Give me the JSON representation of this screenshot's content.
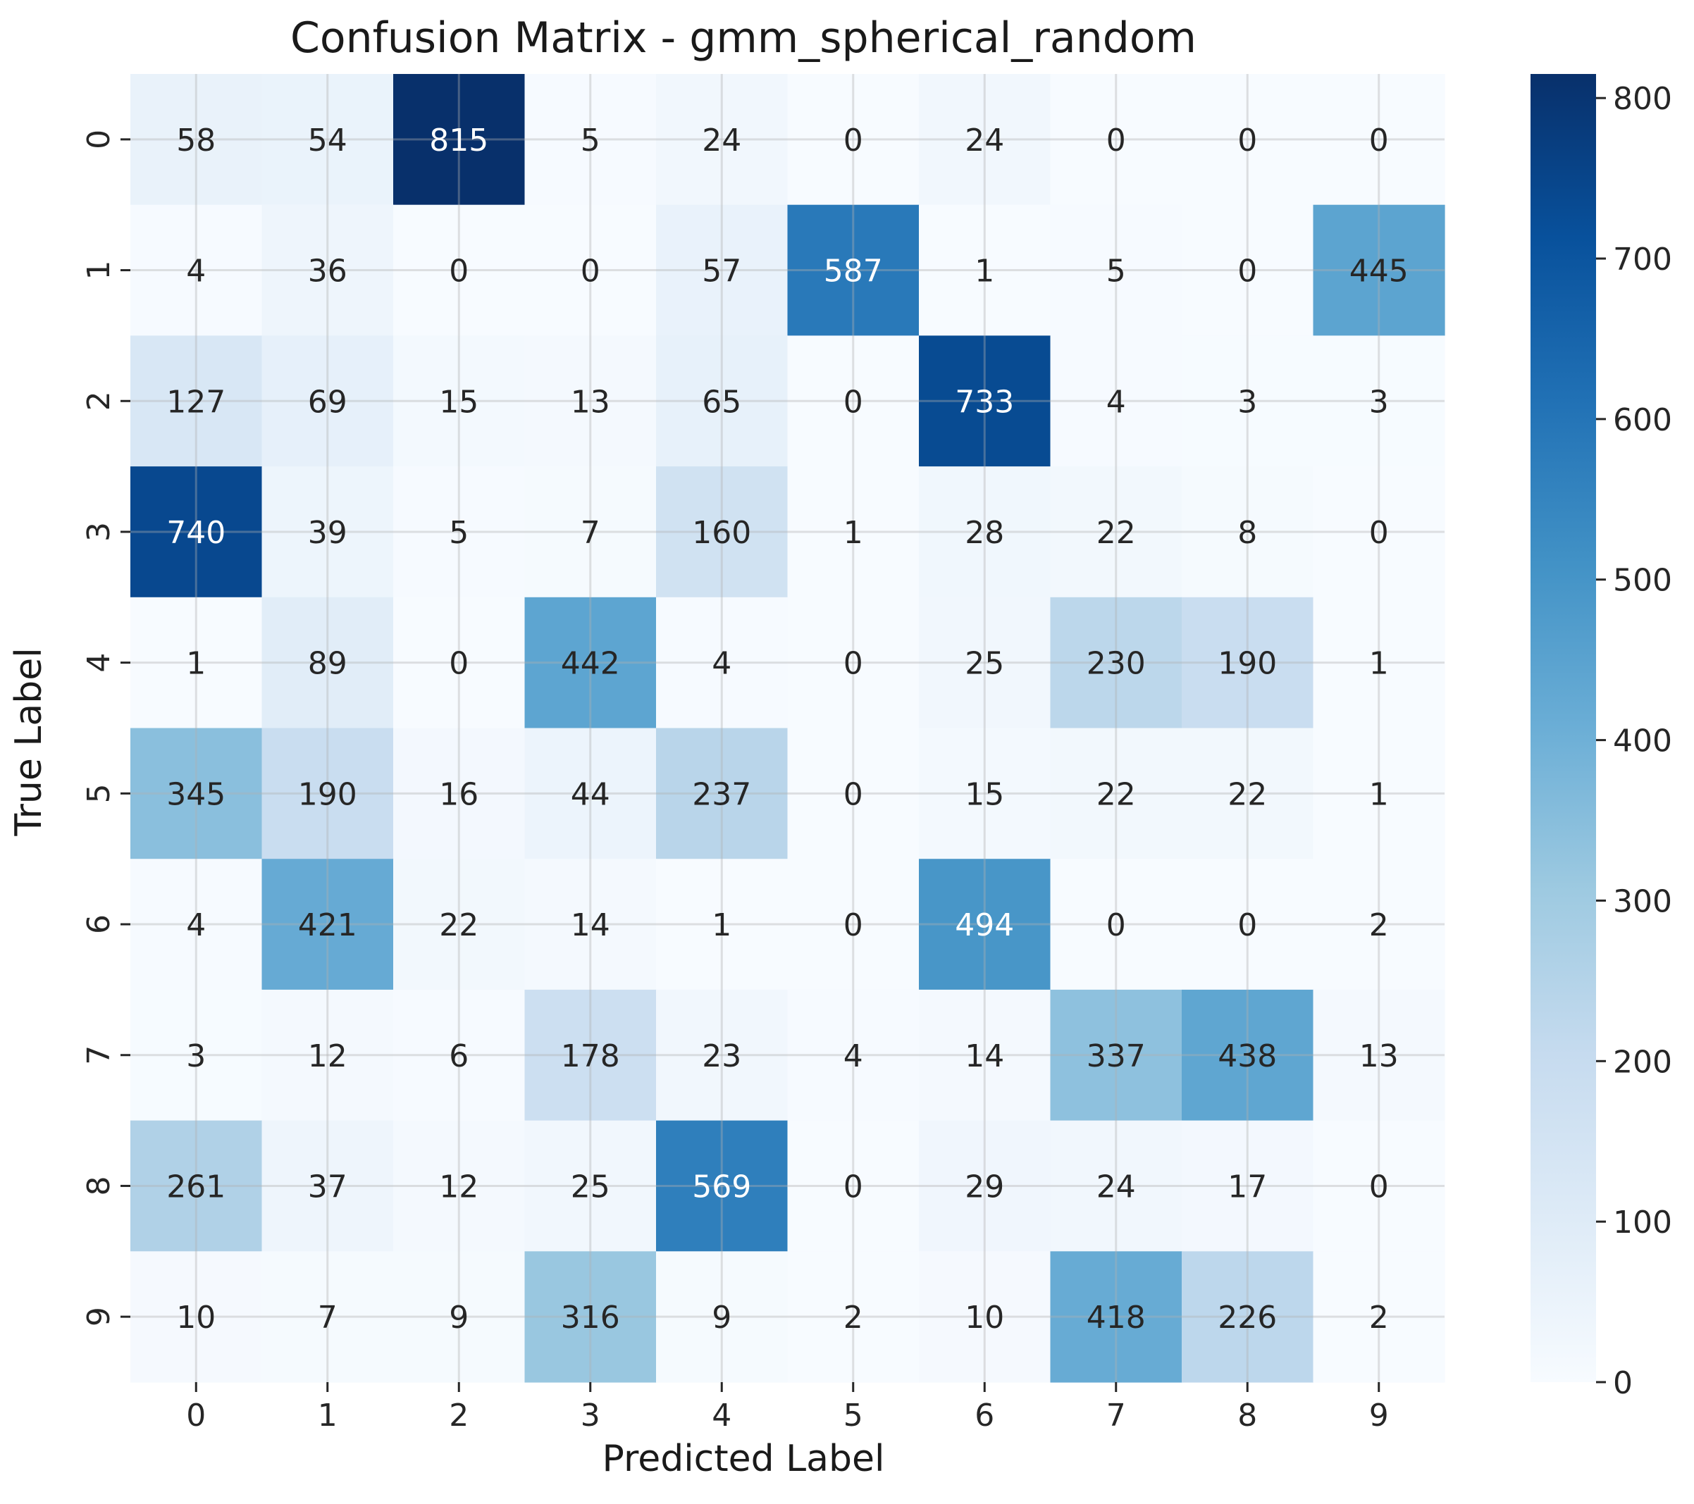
{
  "chart_data": {
    "type": "heatmap",
    "title": "Confusion Matrix - gmm_spherical_random",
    "xlabel": "Predicted Label",
    "ylabel": "True Label",
    "x_categories": [
      "0",
      "1",
      "2",
      "3",
      "4",
      "5",
      "6",
      "7",
      "8",
      "9"
    ],
    "y_categories": [
      "0",
      "1",
      "2",
      "3",
      "4",
      "5",
      "6",
      "7",
      "8",
      "9"
    ],
    "values": [
      [
        58,
        54,
        815,
        5,
        24,
        0,
        24,
        0,
        0,
        0
      ],
      [
        4,
        36,
        0,
        0,
        57,
        587,
        1,
        5,
        0,
        445
      ],
      [
        127,
        69,
        15,
        13,
        65,
        0,
        733,
        4,
        3,
        3
      ],
      [
        740,
        39,
        5,
        7,
        160,
        1,
        28,
        22,
        8,
        0
      ],
      [
        1,
        89,
        0,
        442,
        4,
        0,
        25,
        230,
        190,
        1
      ],
      [
        345,
        190,
        16,
        44,
        237,
        0,
        15,
        22,
        22,
        1
      ],
      [
        4,
        421,
        22,
        14,
        1,
        0,
        494,
        0,
        0,
        2
      ],
      [
        3,
        12,
        6,
        178,
        23,
        4,
        14,
        337,
        438,
        13
      ],
      [
        261,
        37,
        12,
        25,
        569,
        0,
        29,
        24,
        17,
        0
      ],
      [
        10,
        7,
        9,
        316,
        9,
        2,
        10,
        418,
        226,
        2
      ]
    ],
    "colormap": "Blues",
    "colorbar": {
      "min": 0,
      "max": 815,
      "ticks": [
        0,
        100,
        200,
        300,
        400,
        500,
        600,
        700,
        800
      ]
    },
    "grid": true
  }
}
